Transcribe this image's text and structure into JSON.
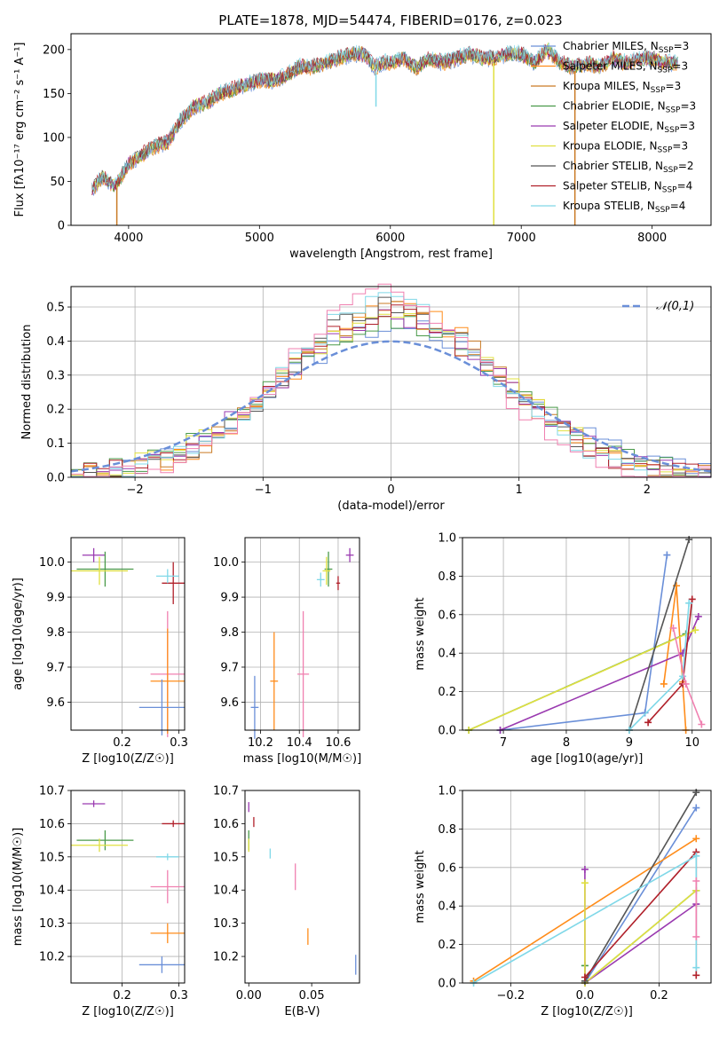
{
  "figure": {
    "title": "PLATE=1878, MJD=54474, FIBERID=0176, z=0.023"
  },
  "chart_data": [
    {
      "id": "spectrum",
      "type": "line",
      "title": "PLATE=1878, MJD=54474, FIBERID=0176, z=0.023",
      "xlabel": "wavelength [Angstrom, rest frame]",
      "ylabel": "Flux [f_λ 10^-17 erg cm^-2 s^-1 A^-1]",
      "xlim": [
        3560,
        8450
      ],
      "ylim": [
        0,
        218
      ],
      "xticks": [
        4000,
        5000,
        6000,
        7000,
        8000
      ],
      "yticks": [
        0,
        50,
        100,
        150,
        200
      ],
      "grid": false,
      "legend_position": "top-right",
      "legend": [
        {
          "name": "Chabrier MILES, N_SSP=3",
          "color": "#6a8fd8"
        },
        {
          "name": "Salpeter MILES, N_SSP=3",
          "color": "#ff8c1a"
        },
        {
          "name": "Kroupa MILES, N_SSP=3",
          "color": "#c97a24"
        },
        {
          "name": "Chabrier ELODIE, N_SSP=3",
          "color": "#4a9a4a"
        },
        {
          "name": "Salpeter ELODIE, N_SSP=3",
          "color": "#9a3ab0"
        },
        {
          "name": "Kroupa ELODIE, N_SSP=3",
          "color": "#e0e040"
        },
        {
          "name": "Chabrier STELIB, N_SSP=2",
          "color": "#555555"
        },
        {
          "name": "Salpeter STELIB, N_SSP=4",
          "color": "#b0202a"
        },
        {
          "name": "Kroupa STELIB, N_SSP=4",
          "color": "#80d8e8"
        }
      ],
      "envelope_x": [
        3720,
        3800,
        3900,
        4000,
        4100,
        4200,
        4300,
        4400,
        4500,
        4600,
        4700,
        4800,
        4900,
        5000,
        5100,
        5200,
        5300,
        5400,
        5500,
        5600,
        5700,
        5800,
        5880,
        5950,
        6000,
        6100,
        6200,
        6300,
        6400,
        6500,
        6600,
        6700,
        6800,
        6900,
        7000,
        7100,
        7200,
        7300,
        7400,
        7500,
        7600,
        7700,
        7800,
        7900,
        8000,
        8100,
        8200
      ],
      "envelope_y": [
        40,
        55,
        45,
        70,
        80,
        90,
        95,
        120,
        135,
        140,
        150,
        155,
        160,
        165,
        165,
        170,
        180,
        180,
        185,
        190,
        195,
        195,
        180,
        185,
        185,
        190,
        180,
        190,
        185,
        190,
        195,
        190,
        190,
        195,
        195,
        185,
        200,
        185,
        180,
        185,
        180,
        190,
        185,
        190,
        190,
        185,
        185
      ],
      "dips": [
        {
          "x": 3910,
          "y": 0,
          "color": "#c97a24"
        },
        {
          "x": 6790,
          "y": 0,
          "color": "#e0e040"
        },
        {
          "x": 7410,
          "y": 0,
          "color": "#c97a24"
        },
        {
          "x": 5890,
          "y": 135,
          "color": "#80d8e8"
        }
      ]
    },
    {
      "id": "residuals",
      "type": "bar",
      "xlabel": "(data-model)/error",
      "ylabel": "Normed distribution",
      "xlim": [
        -2.5,
        2.5
      ],
      "ylim": [
        0,
        0.56
      ],
      "xticks": [
        -2,
        -1,
        0,
        1,
        2
      ],
      "yticks": [
        0.0,
        0.1,
        0.2,
        0.3,
        0.4,
        0.5
      ],
      "grid": true,
      "legend_position": "top-right",
      "reference_curve": {
        "name": "𝒩(0,1)",
        "mu": 0,
        "sigma": 1,
        "color": "#6a8fd8"
      },
      "series_colors": [
        "#6a8fd8",
        "#ff8c1a",
        "#c97a24",
        "#4a9a4a",
        "#9a3ab0",
        "#e0e040",
        "#555555",
        "#b0202a",
        "#80d8e8",
        "#f080b0"
      ],
      "bin_width": 0.1,
      "peak_heights": [
        0.44,
        0.5,
        0.49,
        0.45,
        0.47,
        0.46,
        0.5,
        0.48,
        0.52,
        0.54
      ]
    },
    {
      "id": "age-vs-Z",
      "type": "scatter",
      "xlabel": "Z [log10(Z/Z☉)]",
      "ylabel": "age [log10(age/yr)]",
      "xlim": [
        0.11,
        0.31
      ],
      "ylim": [
        9.52,
        10.07
      ],
      "xticks": [
        0.2,
        0.3
      ],
      "yticks": [
        9.6,
        9.7,
        9.8,
        9.9,
        10.0
      ],
      "grid": true,
      "points": [
        {
          "x": 0.15,
          "xerr": 0.02,
          "y": 10.02,
          "yerr": 0.02,
          "color": "#9a3ab0"
        },
        {
          "x": 0.17,
          "xerr": 0.05,
          "y": 9.98,
          "yerr": 0.05,
          "color": "#4a9a4a"
        },
        {
          "x": 0.16,
          "xerr": 0.05,
          "y": 9.975,
          "yerr": 0.04,
          "color": "#e0e040"
        },
        {
          "x": 0.29,
          "xerr": 0.02,
          "y": 9.94,
          "yerr": 0.06,
          "color": "#b0202a"
        },
        {
          "x": 0.28,
          "xerr": 0.02,
          "y": 9.96,
          "yerr": 0.02,
          "color": "#80d8e8"
        },
        {
          "x": 0.28,
          "xerr": 0.03,
          "y": 9.68,
          "yerr": 0.18,
          "color": "#f080b0"
        },
        {
          "x": 0.28,
          "xerr": 0.03,
          "y": 9.66,
          "yerr": 0.15,
          "color": "#ff8c1a"
        },
        {
          "x": 0.27,
          "xerr": 0.04,
          "y": 9.585,
          "yerr": 0.08,
          "color": "#6a8fd8"
        }
      ]
    },
    {
      "id": "age-vs-mass",
      "type": "scatter",
      "xlabel": "mass [log10(M/M☉)]",
      "ylabel": "",
      "xlim": [
        10.12,
        10.71
      ],
      "ylim": [
        9.52,
        10.07
      ],
      "xticks": [
        10.2,
        10.4,
        10.6
      ],
      "yticks": [
        9.6,
        9.7,
        9.8,
        9.9,
        10.0
      ],
      "grid": true,
      "points": [
        {
          "x": 10.66,
          "xerr": 0.02,
          "y": 10.02,
          "yerr": 0.02,
          "color": "#9a3ab0"
        },
        {
          "x": 10.55,
          "xerr": 0.02,
          "y": 9.98,
          "yerr": 0.05,
          "color": "#4a9a4a"
        },
        {
          "x": 10.54,
          "xerr": 0.02,
          "y": 9.975,
          "yerr": 0.04,
          "color": "#e0e040"
        },
        {
          "x": 10.6,
          "xerr": 0.01,
          "y": 9.94,
          "yerr": 0.02,
          "color": "#b0202a"
        },
        {
          "x": 10.51,
          "xerr": 0.02,
          "y": 9.95,
          "yerr": 0.02,
          "color": "#80d8e8"
        },
        {
          "x": 10.42,
          "xerr": 0.03,
          "y": 9.68,
          "yerr": 0.18,
          "color": "#f080b0"
        },
        {
          "x": 10.27,
          "xerr": 0.02,
          "y": 9.66,
          "yerr": 0.14,
          "color": "#ff8c1a"
        },
        {
          "x": 10.17,
          "xerr": 0.02,
          "y": 9.585,
          "yerr": 0.09,
          "color": "#6a8fd8"
        }
      ]
    },
    {
      "id": "weight-vs-age",
      "type": "line",
      "xlabel": "age [log10(age/yr)]",
      "ylabel": "mass weight",
      "xlim": [
        6.35,
        10.3
      ],
      "ylim": [
        0.0,
        1.0
      ],
      "xticks": [
        7,
        8,
        9,
        10
      ],
      "yticks": [
        0.0,
        0.2,
        0.4,
        0.6,
        0.8,
        1.0
      ],
      "grid": true,
      "series": [
        {
          "color": "#6a8fd8",
          "x": [
            6.95,
            9.25,
            9.6
          ],
          "y": [
            0.0,
            0.09,
            0.91
          ]
        },
        {
          "color": "#ff8c1a",
          "x": [
            9.55,
            9.75,
            9.85,
            9.9
          ],
          "y": [
            0.24,
            0.75,
            0.25,
            0.0
          ]
        },
        {
          "color": "#4a9a4a",
          "x": [
            6.45,
            9.9
          ],
          "y": [
            0.0,
            0.5
          ]
        },
        {
          "color": "#9a3ab0",
          "x": [
            6.95,
            9.85,
            10.1
          ],
          "y": [
            0.0,
            0.4,
            0.59
          ]
        },
        {
          "color": "#e0e040",
          "x": [
            6.45,
            10.05
          ],
          "y": [
            0.0,
            0.52
          ]
        },
        {
          "color": "#555555",
          "x": [
            9.0,
            9.95
          ],
          "y": [
            0.0,
            0.99
          ]
        },
        {
          "color": "#b0202a",
          "x": [
            9.3,
            9.85,
            10.0
          ],
          "y": [
            0.04,
            0.24,
            0.68
          ]
        },
        {
          "color": "#80d8e8",
          "x": [
            9.0,
            9.85,
            9.95
          ],
          "y": [
            0.0,
            0.28,
            0.66
          ]
        },
        {
          "color": "#f080b0",
          "x": [
            9.7,
            9.9,
            10.15
          ],
          "y": [
            0.53,
            0.24,
            0.03
          ]
        }
      ]
    },
    {
      "id": "mass-vs-Z",
      "type": "scatter",
      "xlabel": "Z [log10(Z/Z☉)]",
      "ylabel": "mass [log10(M/M☉)]",
      "xlim": [
        0.11,
        0.31
      ],
      "ylim": [
        10.12,
        10.7
      ],
      "xticks": [
        0.2,
        0.3
      ],
      "yticks": [
        10.2,
        10.3,
        10.4,
        10.5,
        10.6,
        10.7
      ],
      "grid": true,
      "points": [
        {
          "x": 0.15,
          "xerr": 0.02,
          "y": 10.66,
          "yerr": 0.01,
          "color": "#9a3ab0"
        },
        {
          "x": 0.29,
          "xerr": 0.02,
          "y": 10.6,
          "yerr": 0.01,
          "color": "#b0202a"
        },
        {
          "x": 0.17,
          "xerr": 0.05,
          "y": 10.55,
          "yerr": 0.03,
          "color": "#4a9a4a"
        },
        {
          "x": 0.16,
          "xerr": 0.05,
          "y": 10.535,
          "yerr": 0.02,
          "color": "#e0e040"
        },
        {
          "x": 0.28,
          "xerr": 0.02,
          "y": 10.5,
          "yerr": 0.01,
          "color": "#80d8e8"
        },
        {
          "x": 0.28,
          "xerr": 0.03,
          "y": 10.41,
          "yerr": 0.05,
          "color": "#f080b0"
        },
        {
          "x": 0.28,
          "xerr": 0.03,
          "y": 10.27,
          "yerr": 0.03,
          "color": "#ff8c1a"
        },
        {
          "x": 0.27,
          "xerr": 0.04,
          "y": 10.175,
          "yerr": 0.025,
          "color": "#6a8fd8"
        }
      ]
    },
    {
      "id": "mass-vs-ebv",
      "type": "scatter",
      "xlabel": "E(B-V)",
      "ylabel": "",
      "xlim": [
        -0.003,
        0.088
      ],
      "ylim": [
        10.12,
        10.7
      ],
      "xticks": [
        0.0,
        0.05
      ],
      "yticks": [
        10.2,
        10.3,
        10.4,
        10.5,
        10.6,
        10.7
      ],
      "grid": false,
      "points": [
        {
          "x": 0.0,
          "y": 10.65,
          "yerr": 0.015,
          "color": "#9a3ab0"
        },
        {
          "x": 0.004,
          "y": 10.605,
          "yerr": 0.015,
          "color": "#b0202a"
        },
        {
          "x": 0.0,
          "y": 10.55,
          "yerr": 0.03,
          "color": "#4a9a4a"
        },
        {
          "x": 0.0,
          "y": 10.535,
          "yerr": 0.02,
          "color": "#e0e040"
        },
        {
          "x": 0.017,
          "y": 10.51,
          "yerr": 0.015,
          "color": "#80d8e8"
        },
        {
          "x": 0.037,
          "y": 10.44,
          "yerr": 0.04,
          "color": "#f080b0"
        },
        {
          "x": 0.047,
          "y": 10.26,
          "yerr": 0.025,
          "color": "#ff8c1a"
        },
        {
          "x": 0.085,
          "y": 10.175,
          "yerr": 0.03,
          "color": "#6a8fd8"
        }
      ]
    },
    {
      "id": "weight-vs-Z",
      "type": "line",
      "xlabel": "Z [log10(Z/Z☉)]",
      "ylabel": "mass weight",
      "xlim": [
        -0.33,
        0.34
      ],
      "ylim": [
        0.0,
        1.0
      ],
      "xticks": [
        -0.2,
        0.0,
        0.2
      ],
      "yticks": [
        0.0,
        0.2,
        0.4,
        0.6,
        0.8,
        1.0
      ],
      "grid": true,
      "series": [
        {
          "color": "#6a8fd8",
          "x": [
            0.0,
            0.3
          ],
          "y": [
            0.0,
            0.91
          ]
        },
        {
          "color": "#ff8c1a",
          "x": [
            -0.3,
            0.3
          ],
          "y": [
            0.01,
            0.75
          ]
        },
        {
          "color": "#4a9a4a",
          "x": [
            0.0,
            0.0,
            0.3
          ],
          "y": [
            0.09,
            0.0,
            0.48
          ]
        },
        {
          "color": "#9a3ab0",
          "x": [
            0.0,
            0.0,
            0.3
          ],
          "y": [
            0.59,
            0.0,
            0.41
          ]
        },
        {
          "color": "#e0e040",
          "x": [
            0.0,
            0.0,
            0.3
          ],
          "y": [
            0.52,
            0.0,
            0.48
          ]
        },
        {
          "color": "#555555",
          "x": [
            0.0,
            0.3
          ],
          "y": [
            0.01,
            0.99
          ]
        },
        {
          "color": "#b0202a",
          "x": [
            0.0,
            0.3,
            0.3
          ],
          "y": [
            0.03,
            0.68,
            0.04
          ]
        },
        {
          "color": "#80d8e8",
          "x": [
            -0.3,
            0.3,
            0.3
          ],
          "y": [
            0.0,
            0.66,
            0.08
          ]
        },
        {
          "color": "#f080b0",
          "x": [
            0.3,
            0.3
          ],
          "y": [
            0.53,
            0.24
          ]
        }
      ]
    }
  ]
}
